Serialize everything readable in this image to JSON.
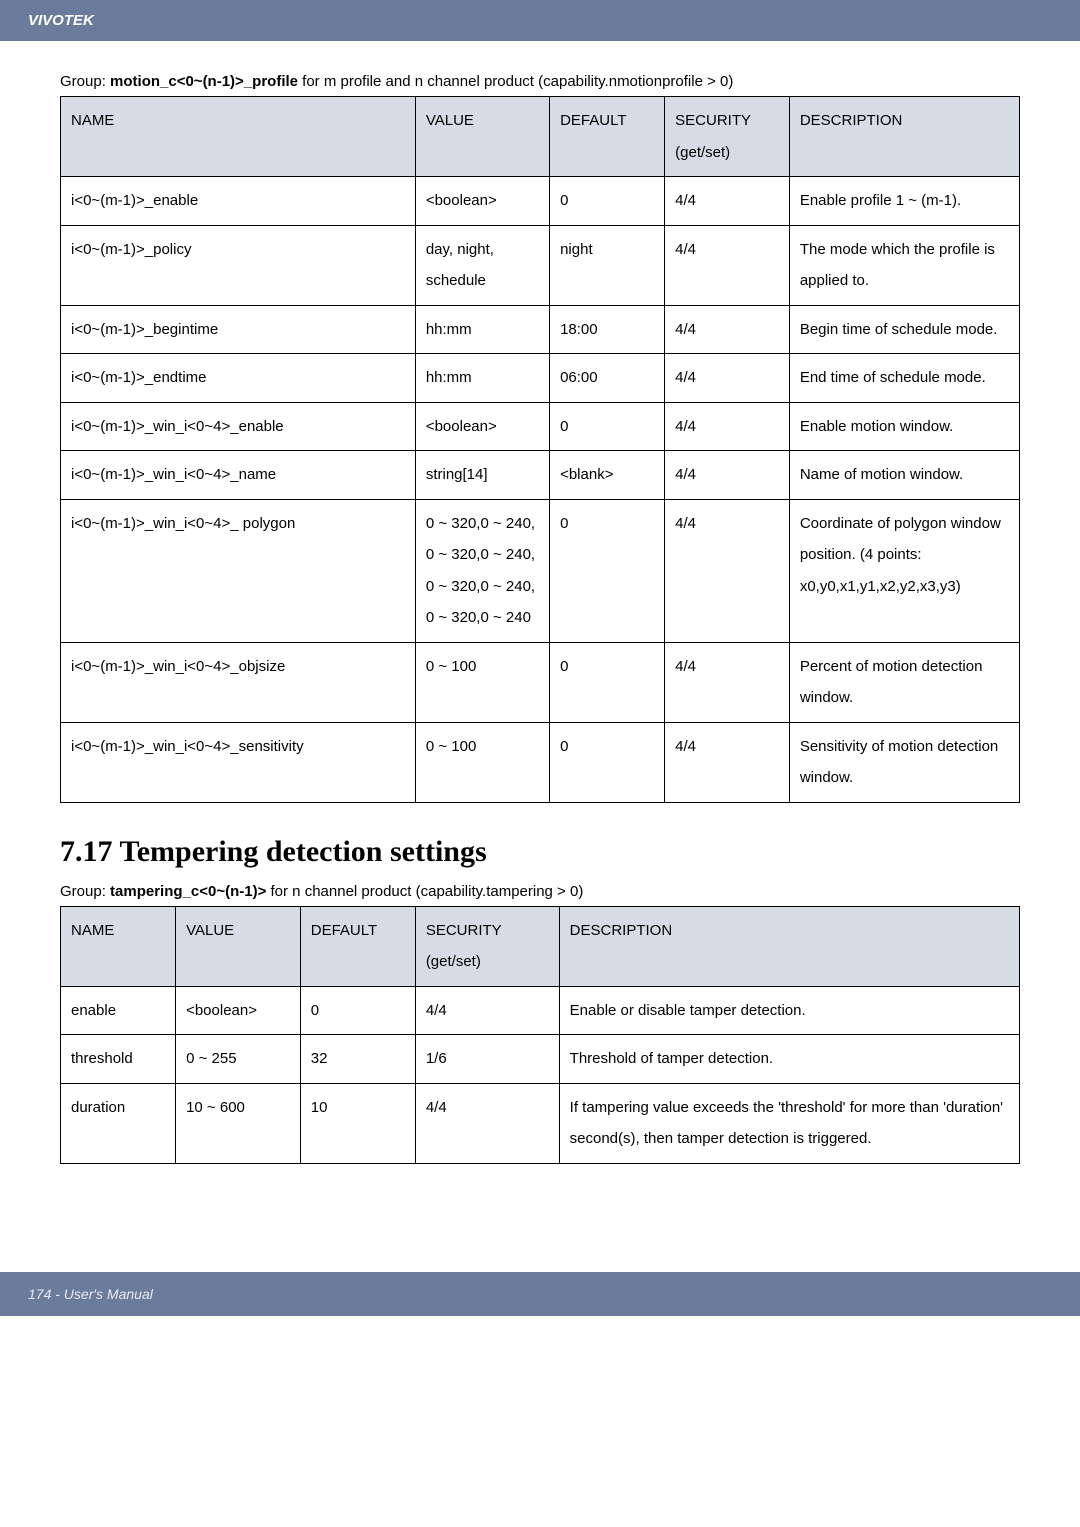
{
  "header": {
    "brand": "VIVOTEK"
  },
  "group1": {
    "prefix": "Group: ",
    "bold": "motion_c<0~(n-1)>_profile",
    "suffix": " for m profile and n channel product (capability.nmotionprofile > 0)"
  },
  "table1": {
    "headers": {
      "name": "NAME",
      "value": "VALUE",
      "default": "DEFAULT",
      "security": "SECURITY (get/set)",
      "description": "DESCRIPTION"
    },
    "rows": [
      {
        "name": "i<0~(m-1)>_enable",
        "value": "<boolean>",
        "default": "0",
        "security": "4/4",
        "description": "Enable profile 1 ~ (m-1)."
      },
      {
        "name": "i<0~(m-1)>_policy",
        "value": "day, night, schedule",
        "default": "night",
        "security": "4/4",
        "description": "The mode which the profile is applied to."
      },
      {
        "name": "i<0~(m-1)>_begintime",
        "value": "hh:mm",
        "default": "18:00",
        "security": "4/4",
        "description": "Begin time of schedule mode."
      },
      {
        "name": "i<0~(m-1)>_endtime",
        "value": "hh:mm",
        "default": "06:00",
        "security": "4/4",
        "description": "End time of schedule mode."
      },
      {
        "name": "i<0~(m-1)>_win_i<0~4>_enable",
        "value": "<boolean>",
        "default": "0",
        "security": "4/4",
        "description": "Enable motion window."
      },
      {
        "name": "i<0~(m-1)>_win_i<0~4>_name",
        "value": "string[14]",
        "default": "<blank>",
        "security": "4/4",
        "description": "Name of motion window."
      },
      {
        "name": "i<0~(m-1)>_win_i<0~4>_ polygon",
        "value": "0 ~ 320,0 ~ 240, 0 ~ 320,0 ~ 240, 0 ~ 320,0 ~ 240, 0 ~ 320,0 ~ 240",
        "default": "0",
        "security": "4/4",
        "description": "Coordinate of polygon window position.\n(4 points: x0,y0,x1,y1,x2,y2,x3,y3)"
      },
      {
        "name": "i<0~(m-1)>_win_i<0~4>_objsize",
        "value": "0 ~ 100",
        "default": "0",
        "security": "4/4",
        "description": "Percent of motion detection window."
      },
      {
        "name": "i<0~(m-1)>_win_i<0~4>_sensitivity",
        "value": "0 ~ 100",
        "default": "0",
        "security": "4/4",
        "description": "Sensitivity of motion detection window."
      }
    ]
  },
  "section": {
    "title": "7.17 Tempering detection settings"
  },
  "group2": {
    "prefix": "Group: ",
    "bold": "tampering_c<0~(n-1)>",
    "suffix": " for n channel product (capability.tampering > 0)"
  },
  "table2": {
    "headers": {
      "name": "NAME",
      "value": "VALUE",
      "default": "DEFAULT",
      "security": "SECURITY (get/set)",
      "description": "DESCRIPTION"
    },
    "rows": [
      {
        "name": "enable",
        "value": "<boolean>",
        "default": "0",
        "security": "4/4",
        "description": "Enable or disable tamper detection."
      },
      {
        "name": "threshold",
        "value": "0 ~ 255",
        "default": "32",
        "security": "1/6",
        "description": "Threshold of tamper detection."
      },
      {
        "name": "duration",
        "value": "10 ~ 600",
        "default": "10",
        "security": "4/4",
        "description": "If tampering value exceeds the 'threshold' for more than 'duration' second(s), then tamper detection is triggered."
      }
    ]
  },
  "footer": {
    "text": "174 - User's Manual"
  }
}
